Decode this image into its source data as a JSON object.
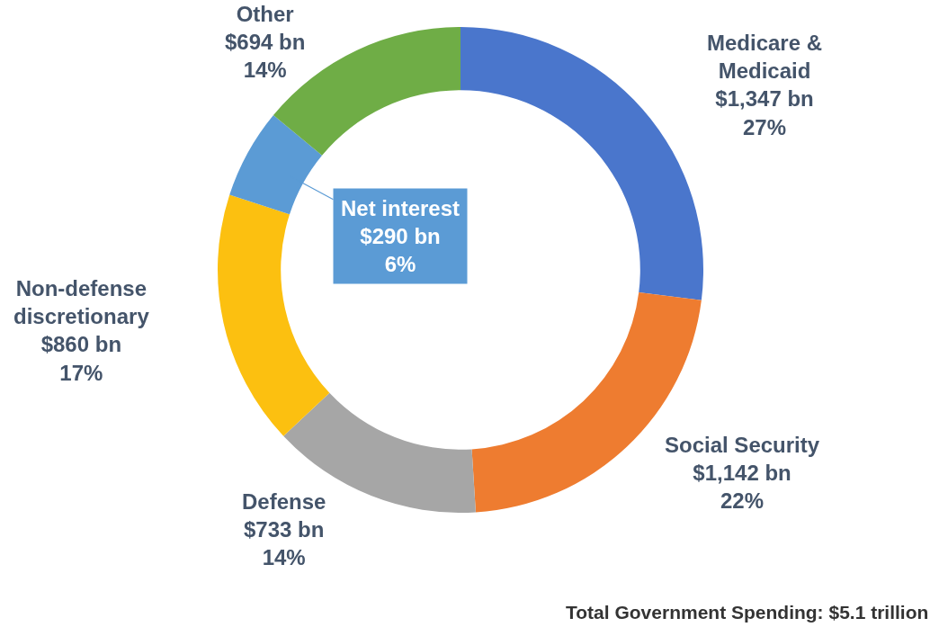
{
  "chart_data": {
    "type": "donut",
    "categories": [
      "Medicare & Medicaid",
      "Social Security",
      "Defense",
      "Non-defense discretionary",
      "Net interest",
      "Other"
    ],
    "values": [
      27,
      22,
      14,
      17,
      6,
      14
    ],
    "colors": [
      "#4a76cc",
      "#ee7c30",
      "#a6a6a6",
      "#fcc010",
      "#5b9bd5",
      "#6fad46"
    ],
    "value_labels": [
      "$1,347 bn\n27%",
      "$1,142 bn\n22%",
      "$733 bn\n14%",
      "$860 bn\n17%",
      "$290 bn\n6%",
      "$694 bn\n14%"
    ],
    "annotations": [
      "Total Government Spending: $5.1 trillion"
    ],
    "legend": false
  }
}
